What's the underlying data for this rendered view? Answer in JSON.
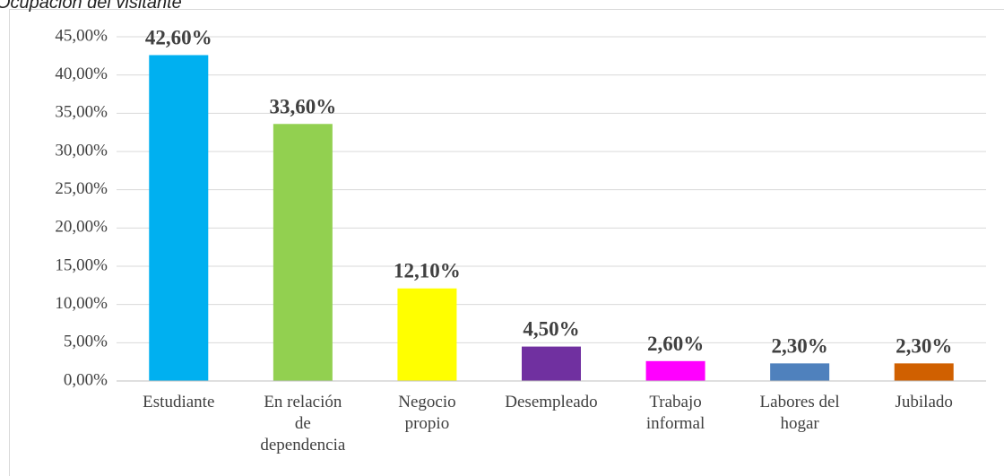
{
  "chart_data": {
    "type": "bar",
    "title": "Ocupación del visitante",
    "categories": [
      "Estudiante",
      "En relación\nde\ndependencia",
      "Negocio\npropio",
      "Desempleado",
      "Trabajo\ninformal",
      "Labores del\nhogar",
      "Jubilado"
    ],
    "values": [
      42.6,
      33.6,
      12.1,
      4.5,
      2.6,
      2.3,
      2.3
    ],
    "value_labels": [
      "42,60%",
      "33,60%",
      "12,10%",
      "4,50%",
      "2,60%",
      "2,30%",
      "2,30%"
    ],
    "colors": [
      "#00b0f0",
      "#92d050",
      "#ffff00",
      "#7030a0",
      "#ff00ff",
      "#4f81bd",
      "#d06000"
    ],
    "ylim": [
      0,
      45
    ],
    "yticks": [
      {
        "value": 0,
        "label": "0,00%"
      },
      {
        "value": 5,
        "label": "5,00%"
      },
      {
        "value": 10,
        "label": "10,00%"
      },
      {
        "value": 15,
        "label": "15,00%"
      },
      {
        "value": 20,
        "label": "20,00%"
      },
      {
        "value": 25,
        "label": "25,00%"
      },
      {
        "value": 30,
        "label": "30,00%"
      },
      {
        "value": 35,
        "label": "35,00%"
      },
      {
        "value": 40,
        "label": "40,00%"
      },
      {
        "value": 45,
        "label": "45,00%"
      }
    ],
    "grid": true
  }
}
